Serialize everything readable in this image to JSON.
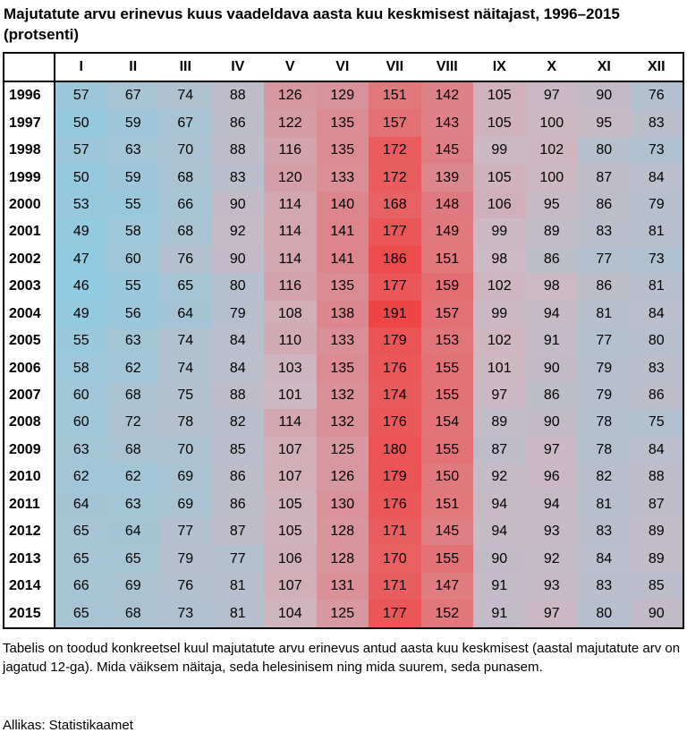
{
  "title": "Majutatute arvu erinevus kuus vaadeldava aasta kuu keskmisest näitajast, 1996–2015 (protsenti)",
  "note": "Tabelis on toodud konkreetsel kuul majutatute arvu erinevus antud aasta kuu keskmisest (aastal majutatute arv on jagatud 12-ga). Mida väiksem näitaja, seda helesinisem ning mida suurem, seda punasem.",
  "source": "Allikas: Statistikaamet",
  "colors": {
    "low": "#8fcbe0",
    "mid": "#cdb8c2",
    "high": "#f04545"
  },
  "chart_data": {
    "type": "heatmap",
    "title": "Majutatute arvu erinevus kuus vaadeldava aasta kuu keskmisest näitajast, 1996–2015 (protsenti)",
    "columns": [
      "I",
      "II",
      "III",
      "IV",
      "V",
      "VI",
      "VII",
      "VIII",
      "IX",
      "X",
      "XI",
      "XII"
    ],
    "rows": [
      "1996",
      "1997",
      "1998",
      "1999",
      "2000",
      "2001",
      "2002",
      "2003",
      "2004",
      "2005",
      "2006",
      "2007",
      "2008",
      "2009",
      "2010",
      "2011",
      "2012",
      "2013",
      "2014",
      "2015"
    ],
    "values": [
      [
        57,
        67,
        74,
        88,
        126,
        129,
        151,
        142,
        105,
        97,
        90,
        76
      ],
      [
        50,
        59,
        67,
        86,
        122,
        135,
        157,
        143,
        105,
        100,
        95,
        83
      ],
      [
        57,
        63,
        70,
        88,
        116,
        135,
        172,
        145,
        99,
        102,
        80,
        73
      ],
      [
        50,
        59,
        68,
        83,
        120,
        133,
        172,
        139,
        105,
        100,
        87,
        84
      ],
      [
        53,
        55,
        66,
        90,
        114,
        140,
        168,
        148,
        106,
        95,
        86,
        79
      ],
      [
        49,
        58,
        68,
        92,
        114,
        141,
        177,
        149,
        99,
        89,
        83,
        81
      ],
      [
        47,
        60,
        76,
        90,
        114,
        141,
        186,
        151,
        98,
        86,
        77,
        73
      ],
      [
        46,
        55,
        65,
        80,
        116,
        135,
        177,
        159,
        102,
        98,
        86,
        81
      ],
      [
        49,
        56,
        64,
        79,
        108,
        138,
        191,
        157,
        99,
        94,
        81,
        84
      ],
      [
        55,
        63,
        74,
        84,
        110,
        133,
        179,
        153,
        102,
        91,
        77,
        80
      ],
      [
        58,
        62,
        74,
        84,
        103,
        135,
        176,
        155,
        101,
        90,
        79,
        83
      ],
      [
        60,
        68,
        75,
        88,
        101,
        132,
        174,
        155,
        97,
        86,
        79,
        86
      ],
      [
        60,
        72,
        78,
        82,
        114,
        132,
        176,
        154,
        89,
        90,
        78,
        75
      ],
      [
        63,
        68,
        70,
        85,
        107,
        125,
        180,
        155,
        87,
        97,
        78,
        84
      ],
      [
        62,
        62,
        69,
        86,
        107,
        126,
        179,
        150,
        92,
        96,
        82,
        88
      ],
      [
        64,
        63,
        69,
        86,
        105,
        130,
        176,
        151,
        94,
        94,
        81,
        87
      ],
      [
        65,
        64,
        77,
        87,
        105,
        128,
        171,
        145,
        94,
        93,
        83,
        89
      ],
      [
        65,
        65,
        79,
        77,
        106,
        128,
        170,
        155,
        90,
        92,
        84,
        89
      ],
      [
        66,
        69,
        76,
        81,
        107,
        131,
        171,
        147,
        91,
        93,
        83,
        85
      ],
      [
        65,
        68,
        73,
        81,
        104,
        125,
        177,
        152,
        91,
        97,
        80,
        90
      ]
    ]
  }
}
